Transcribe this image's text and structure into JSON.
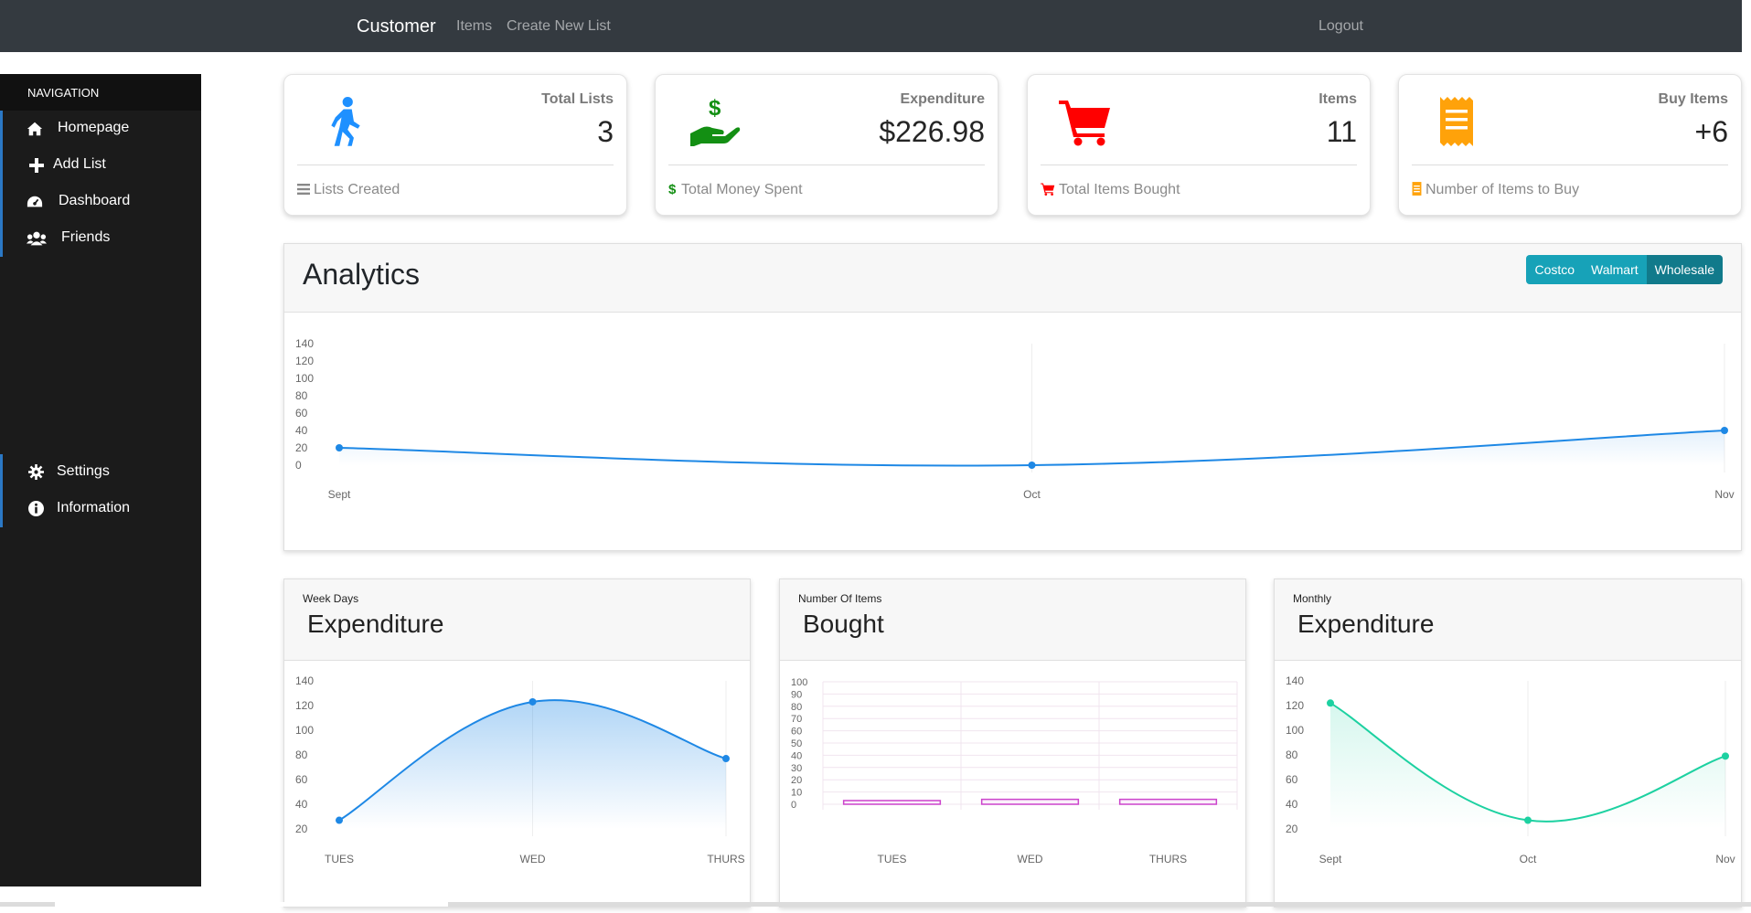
{
  "navbar": {
    "brand": "Customer",
    "links": [
      "Items",
      "Create New List"
    ],
    "logout": "Logout"
  },
  "sidebar": {
    "heading": "NAVIGATION",
    "items": [
      {
        "label": "Homepage",
        "icon": "home-icon"
      },
      {
        "label": "Add List",
        "icon": "plus-icon"
      },
      {
        "label": "Dashboard",
        "icon": "dashboard-icon"
      },
      {
        "label": "Friends",
        "icon": "friends-icon"
      },
      {
        "label": "Settings",
        "icon": "gear-icon"
      },
      {
        "label": "Information",
        "icon": "info-icon"
      }
    ]
  },
  "cards": [
    {
      "title": "Total Lists",
      "value": "3",
      "footer": "Lists Created",
      "icon": "walking-icon",
      "color": "#1e90ff",
      "footer_icon": "bars-icon",
      "footer_color": "#888888"
    },
    {
      "title": "Expenditure",
      "value": "$226.98",
      "footer": "Total Money Spent",
      "icon": "hand-money-icon",
      "color": "#138f13",
      "footer_icon": "dollar-icon",
      "footer_color": "#138f13"
    },
    {
      "title": "Items",
      "value": "11",
      "footer": "Total Items Bought",
      "icon": "cart-icon",
      "color": "#ff0000",
      "footer_icon": "cart-icon",
      "footer_color": "#ff0000"
    },
    {
      "title": "Buy Items",
      "value": "+6",
      "footer": "Number of Items to Buy",
      "icon": "receipt-icon",
      "color": "#ffa20a",
      "footer_icon": "receipt-icon",
      "footer_color": "#ffa20a"
    }
  ],
  "analytics": {
    "title": "Analytics",
    "filters": [
      "Costco",
      "Walmart",
      "Wholesale"
    ],
    "active_filter": "Wholesale"
  },
  "mini_panels": [
    {
      "caption": "Week Days",
      "title": "Expenditure"
    },
    {
      "caption": "Number Of Items",
      "title": "Bought"
    },
    {
      "caption": "Monthly",
      "title": "Expenditure"
    }
  ],
  "chart_data": [
    {
      "type": "area",
      "x": [
        "Sept",
        "Oct",
        "Nov"
      ],
      "values": [
        20,
        0,
        40
      ],
      "yticks": [
        0,
        20,
        40,
        60,
        80,
        100,
        120,
        140
      ],
      "ylim": [
        0,
        140
      ],
      "color": "#1e88e5"
    },
    {
      "type": "area",
      "x": [
        "TUES",
        "WED",
        "THURS"
      ],
      "values": [
        27,
        123,
        77
      ],
      "yticks": [
        20,
        40,
        60,
        80,
        100,
        120,
        140
      ],
      "ylim": [
        20,
        140
      ],
      "color": "#1e88e5"
    },
    {
      "type": "bar",
      "categories": [
        "TUES",
        "WED",
        "THURS"
      ],
      "values": [
        3,
        4,
        4
      ],
      "yticks": [
        0,
        10,
        20,
        30,
        40,
        50,
        60,
        70,
        80,
        90,
        100
      ],
      "ylim": [
        0,
        100
      ],
      "color": "#cc44cc"
    },
    {
      "type": "area",
      "x": [
        "Sept",
        "Oct",
        "Nov"
      ],
      "values": [
        122,
        27,
        79
      ],
      "yticks": [
        20,
        40,
        60,
        80,
        100,
        120,
        140
      ],
      "ylim": [
        20,
        140
      ],
      "color": "#1dd1a1"
    }
  ]
}
